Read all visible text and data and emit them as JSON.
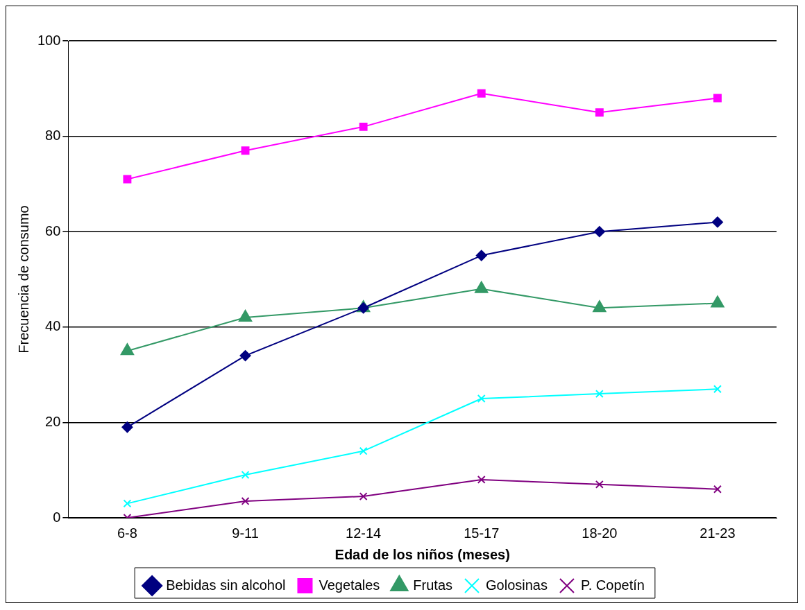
{
  "chart_data": {
    "type": "line",
    "xlabel": "Edad de los niños (meses)",
    "ylabel": "Frecuencia de consumo",
    "categories": [
      "6-8",
      "9-11",
      "12-14",
      "15-17",
      "18-20",
      "21-23"
    ],
    "ylim": [
      0,
      100
    ],
    "yticks": [
      0,
      20,
      40,
      60,
      80,
      100
    ],
    "grid": "y",
    "legend": "bottom",
    "line_style": "solid",
    "series": [
      {
        "name": "Bebidas sin alcohol",
        "color": "#000080",
        "marker": "diamond",
        "values": [
          19,
          34,
          44,
          55,
          60,
          62
        ]
      },
      {
        "name": "Vegetales",
        "color": "#ff00ff",
        "marker": "square",
        "values": [
          71,
          77,
          82,
          89,
          85,
          88
        ]
      },
      {
        "name": "Frutas",
        "color": "#339966",
        "marker": "triangle",
        "values": [
          35,
          42,
          44,
          48,
          44,
          45
        ]
      },
      {
        "name": "Golosinas",
        "color": "#00ffff",
        "marker": "cross",
        "values": [
          3,
          9,
          14,
          25,
          26,
          27
        ]
      },
      {
        "name": "P. Copetín",
        "color": "#800080",
        "marker": "cross",
        "values": [
          0,
          3.5,
          4.5,
          8,
          7,
          6
        ]
      }
    ]
  }
}
